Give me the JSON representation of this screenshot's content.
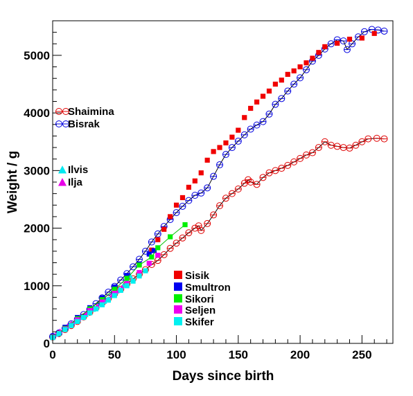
{
  "chart_data": {
    "type": "scatter",
    "title": "",
    "xlabel": "Days since birth",
    "ylabel": "Weight / g",
    "xlim": [
      0,
      275
    ],
    "ylim": [
      0,
      5600
    ],
    "x_ticks": [
      0,
      50,
      100,
      150,
      200,
      250
    ],
    "y_ticks": [
      0,
      1000,
      2000,
      3000,
      4000,
      5000
    ],
    "grid": false,
    "series": [
      {
        "name": "Shaimina",
        "color": "#e00000",
        "marker": "open-circle",
        "line": true,
        "line_color": "#000000",
        "points": [
          [
            0,
            110
          ],
          [
            5,
            170
          ],
          [
            10,
            240
          ],
          [
            15,
            310
          ],
          [
            20,
            380
          ],
          [
            25,
            460
          ],
          [
            30,
            540
          ],
          [
            35,
            620
          ],
          [
            40,
            700
          ],
          [
            45,
            780
          ],
          [
            50,
            860
          ],
          [
            55,
            940
          ],
          [
            60,
            1030
          ],
          [
            65,
            1120
          ],
          [
            70,
            1200
          ],
          [
            75,
            1280
          ],
          [
            80,
            1370
          ],
          [
            85,
            1440
          ],
          [
            90,
            1540
          ],
          [
            95,
            1650
          ],
          [
            100,
            1740
          ],
          [
            105,
            1830
          ],
          [
            110,
            1920
          ],
          [
            115,
            2000
          ],
          [
            118,
            2040
          ],
          [
            120,
            1960
          ],
          [
            125,
            2080
          ],
          [
            130,
            2230
          ],
          [
            135,
            2390
          ],
          [
            140,
            2520
          ],
          [
            145,
            2600
          ],
          [
            150,
            2680
          ],
          [
            155,
            2780
          ],
          [
            158,
            2840
          ],
          [
            160,
            2800
          ],
          [
            165,
            2760
          ],
          [
            170,
            2880
          ],
          [
            175,
            2960
          ],
          [
            180,
            3000
          ],
          [
            185,
            3040
          ],
          [
            190,
            3090
          ],
          [
            195,
            3150
          ],
          [
            200,
            3210
          ],
          [
            205,
            3270
          ],
          [
            210,
            3310
          ],
          [
            215,
            3400
          ],
          [
            220,
            3500
          ],
          [
            225,
            3440
          ],
          [
            230,
            3420
          ],
          [
            235,
            3400
          ],
          [
            240,
            3390
          ],
          [
            245,
            3440
          ],
          [
            250,
            3500
          ],
          [
            255,
            3550
          ],
          [
            262,
            3560
          ],
          [
            268,
            3550
          ]
        ]
      },
      {
        "name": "Bisrak",
        "color": "#0000e0",
        "marker": "open-circle",
        "line": true,
        "line_color": "#000000",
        "points": [
          [
            0,
            120
          ],
          [
            5,
            180
          ],
          [
            10,
            260
          ],
          [
            15,
            340
          ],
          [
            20,
            420
          ],
          [
            25,
            500
          ],
          [
            30,
            590
          ],
          [
            35,
            690
          ],
          [
            40,
            790
          ],
          [
            45,
            890
          ],
          [
            50,
            990
          ],
          [
            55,
            1100
          ],
          [
            60,
            1210
          ],
          [
            65,
            1330
          ],
          [
            70,
            1460
          ],
          [
            75,
            1600
          ],
          [
            80,
            1760
          ],
          [
            85,
            1900
          ],
          [
            90,
            2030
          ],
          [
            95,
            2150
          ],
          [
            100,
            2270
          ],
          [
            105,
            2380
          ],
          [
            110,
            2480
          ],
          [
            115,
            2570
          ],
          [
            120,
            2610
          ],
          [
            125,
            2700
          ],
          [
            130,
            2900
          ],
          [
            135,
            3100
          ],
          [
            140,
            3280
          ],
          [
            145,
            3400
          ],
          [
            150,
            3510
          ],
          [
            155,
            3620
          ],
          [
            160,
            3720
          ],
          [
            165,
            3790
          ],
          [
            170,
            3850
          ],
          [
            175,
            3980
          ],
          [
            180,
            4150
          ],
          [
            185,
            4250
          ],
          [
            190,
            4380
          ],
          [
            195,
            4500
          ],
          [
            200,
            4610
          ],
          [
            205,
            4750
          ],
          [
            210,
            4900
          ],
          [
            215,
            5000
          ],
          [
            220,
            5110
          ],
          [
            225,
            5200
          ],
          [
            230,
            5270
          ],
          [
            235,
            5250
          ],
          [
            238,
            5100
          ],
          [
            242,
            5200
          ],
          [
            247,
            5320
          ],
          [
            252,
            5410
          ],
          [
            258,
            5450
          ],
          [
            263,
            5440
          ],
          [
            268,
            5420
          ]
        ]
      },
      {
        "name": "Ilvis",
        "color": "#00e8f0",
        "marker": "filled-triangle",
        "line": false,
        "points": [
          [
            0,
            100
          ],
          [
            3,
            150
          ],
          [
            6,
            200
          ],
          [
            9,
            250
          ],
          [
            12,
            290
          ],
          [
            15,
            330
          ],
          [
            18,
            370
          ],
          [
            21,
            410
          ],
          [
            24,
            450
          ],
          [
            27,
            490
          ],
          [
            30,
            540
          ],
          [
            33,
            580
          ],
          [
            36,
            630
          ],
          [
            39,
            680
          ],
          [
            42,
            720
          ],
          [
            45,
            770
          ],
          [
            48,
            820
          ],
          [
            51,
            880
          ],
          [
            54,
            940
          ],
          [
            57,
            1000
          ],
          [
            60,
            1080
          ],
          [
            63,
            1160
          ]
        ]
      },
      {
        "name": "Ilja",
        "color": "#e800e8",
        "marker": "filled-triangle",
        "line": false,
        "points": [
          [
            0,
            105
          ],
          [
            3,
            160
          ],
          [
            6,
            210
          ],
          [
            9,
            255
          ],
          [
            12,
            300
          ],
          [
            15,
            345
          ],
          [
            18,
            385
          ],
          [
            21,
            430
          ],
          [
            24,
            470
          ],
          [
            27,
            520
          ],
          [
            30,
            560
          ],
          [
            33,
            600
          ],
          [
            36,
            650
          ],
          [
            40,
            700
          ],
          [
            44,
            760
          ],
          [
            48,
            830
          ],
          [
            52,
            900
          ],
          [
            56,
            970
          ]
        ]
      },
      {
        "name": "Sisik",
        "color": "#f00000",
        "marker": "filled-square",
        "line": false,
        "points": [
          [
            0,
            115
          ],
          [
            10,
            270
          ],
          [
            20,
            440
          ],
          [
            30,
            600
          ],
          [
            40,
            780
          ],
          [
            50,
            960
          ],
          [
            60,
            1160
          ],
          [
            70,
            1370
          ],
          [
            80,
            1620
          ],
          [
            85,
            1800
          ],
          [
            90,
            1980
          ],
          [
            95,
            2200
          ],
          [
            100,
            2400
          ],
          [
            105,
            2530
          ],
          [
            110,
            2710
          ],
          [
            115,
            2820
          ],
          [
            120,
            2960
          ],
          [
            125,
            3180
          ],
          [
            130,
            3330
          ],
          [
            135,
            3400
          ],
          [
            140,
            3480
          ],
          [
            145,
            3580
          ],
          [
            150,
            3700
          ],
          [
            155,
            3920
          ],
          [
            160,
            4080
          ],
          [
            165,
            4190
          ],
          [
            170,
            4290
          ],
          [
            175,
            4380
          ],
          [
            180,
            4500
          ],
          [
            185,
            4570
          ],
          [
            190,
            4670
          ],
          [
            195,
            4730
          ],
          [
            200,
            4800
          ],
          [
            205,
            4870
          ],
          [
            210,
            4950
          ],
          [
            215,
            5050
          ],
          [
            220,
            5150
          ],
          [
            230,
            5210
          ],
          [
            240,
            5280
          ],
          [
            250,
            5300
          ],
          [
            260,
            5380
          ]
        ]
      },
      {
        "name": "Smultron",
        "color": "#0000f0",
        "marker": "filled-square",
        "line": false,
        "points": [
          [
            0,
            120
          ],
          [
            10,
            280
          ],
          [
            20,
            450
          ],
          [
            30,
            620
          ],
          [
            40,
            790
          ],
          [
            50,
            980
          ],
          [
            60,
            1180
          ],
          [
            70,
            1380
          ],
          [
            78,
            1550
          ],
          [
            82,
            1610
          ]
        ]
      },
      {
        "name": "Sikori",
        "color": "#00f000",
        "marker": "filled-square",
        "line": true,
        "line_color": "#00c000",
        "points": [
          [
            0,
            110
          ],
          [
            10,
            260
          ],
          [
            20,
            430
          ],
          [
            30,
            600
          ],
          [
            40,
            760
          ],
          [
            50,
            940
          ],
          [
            60,
            1130
          ],
          [
            70,
            1360
          ],
          [
            80,
            1500
          ],
          [
            85,
            1660
          ],
          [
            95,
            1850
          ],
          [
            107,
            2060
          ]
        ]
      },
      {
        "name": "Seljen",
        "color": "#f000f0",
        "marker": "filled-square",
        "line": false,
        "points": [
          [
            0,
            105
          ],
          [
            10,
            250
          ],
          [
            20,
            410
          ],
          [
            30,
            570
          ],
          [
            40,
            720
          ],
          [
            50,
            870
          ],
          [
            60,
            1040
          ],
          [
            70,
            1230
          ],
          [
            78,
            1390
          ],
          [
            85,
            1530
          ]
        ]
      },
      {
        "name": "Skifer",
        "color": "#00f0f0",
        "marker": "filled-square",
        "line": false,
        "points": [
          [
            0,
            100
          ],
          [
            5,
            170
          ],
          [
            10,
            240
          ],
          [
            15,
            310
          ],
          [
            20,
            380
          ],
          [
            25,
            450
          ],
          [
            30,
            530
          ],
          [
            35,
            600
          ],
          [
            40,
            670
          ],
          [
            45,
            750
          ],
          [
            50,
            830
          ],
          [
            55,
            920
          ],
          [
            60,
            1000
          ],
          [
            65,
            1080
          ],
          [
            70,
            1170
          ],
          [
            75,
            1260
          ]
        ]
      }
    ]
  }
}
